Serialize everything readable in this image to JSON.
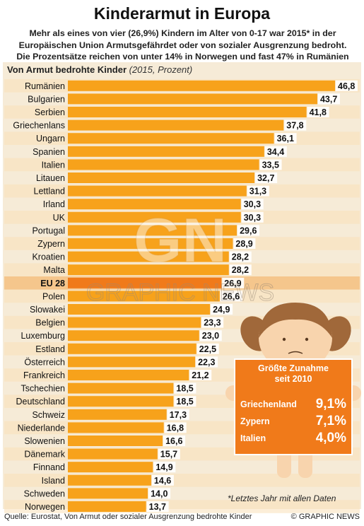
{
  "title": "Kinderarmut in Europa",
  "subtitle_lines": [
    "Mehr als eines von vier (26,9%) Kindern im Alter von 0-17 war 2015* in der",
    "Europäischen Union Armutsgefährdet oder von sozialer Ausgrenzung bedroht.",
    "Die Prozentsätze reichen von unter 14% in Norwegen und fast 47% in Rumänien"
  ],
  "chart_header": {
    "label": "Von Armut bedrohte Kinder",
    "sub": "(2015, Prozent)"
  },
  "chart_data": {
    "type": "bar",
    "orientation": "horizontal",
    "title": "Von Armut bedrohte Kinder",
    "subtitle": "(2015, Prozent)",
    "categories": [
      "Rumänien",
      "Bulgarien",
      "Serbien",
      "Griechenlans",
      "Ungarn",
      "Spanien",
      "Italien",
      "Litauen",
      "Lettland",
      "Irland",
      "UK",
      "Portugal",
      "Zypern",
      "Kroatien",
      "Malta",
      "EU 28",
      "Polen",
      "Slowakei",
      "Belgien",
      "Luxemburg",
      "Estland",
      "Österreich",
      "Frankreich",
      "Tschechien",
      "Deutschland",
      "Schweiz",
      "Niederlande",
      "Slowenien",
      "Dänemark",
      "Finnand",
      "Island",
      "Schweden",
      "Norwegen"
    ],
    "values": [
      46.8,
      43.7,
      41.8,
      37.8,
      36.1,
      34.4,
      33.5,
      32.7,
      31.3,
      30.3,
      30.3,
      29.6,
      28.9,
      28.2,
      28.2,
      26.9,
      26.6,
      24.9,
      23.3,
      23.0,
      22.5,
      22.3,
      21.2,
      18.5,
      18.5,
      17.3,
      16.8,
      16.6,
      15.7,
      14.9,
      14.6,
      14.0,
      13.7
    ],
    "value_labels": [
      "46,8",
      "43,7",
      "41,8",
      "37,8",
      "36,1",
      "34,4",
      "33,5",
      "32,7",
      "31,3",
      "30,3",
      "30,3",
      "29,6",
      "28,9",
      "28,2",
      "28,2",
      "26,9",
      "26,6",
      "24,9",
      "23,3",
      "23,0",
      "22,5",
      "22,3",
      "21,2",
      "18,5",
      "18,5",
      "17,3",
      "16,8",
      "16,6",
      "15,7",
      "14,9",
      "14,6",
      "14,0",
      "13,7"
    ],
    "highlight": "EU 28",
    "xlim": [
      0,
      50
    ],
    "colors": {
      "bar": "#f7a21b",
      "highlight": "#f07a1a",
      "stripe": "#f9e0b8"
    }
  },
  "callout": {
    "title_lines": [
      "Größte Zunahme",
      "seit 2010"
    ],
    "items": [
      {
        "country": "Griechenland",
        "value": "9,1%"
      },
      {
        "country": "Zypern",
        "value": "7,1%"
      },
      {
        "country": "Italien",
        "value": "4,0%"
      }
    ],
    "colors": {
      "box": "#f07a1a",
      "hair": "#a0683a",
      "face": "#f8d4ad",
      "shirt": "#f07a1a"
    }
  },
  "watermark": {
    "logo": "GN",
    "text": "GRAPHIC NEWS"
  },
  "note": "*Letztes Jahr mit allen Daten",
  "footer": {
    "source": "Quelle: Eurostat, Von Armut oder sozialer Ausgrenzung bedrohte Kinder",
    "credit": "© GRAPHIC NEWS"
  }
}
